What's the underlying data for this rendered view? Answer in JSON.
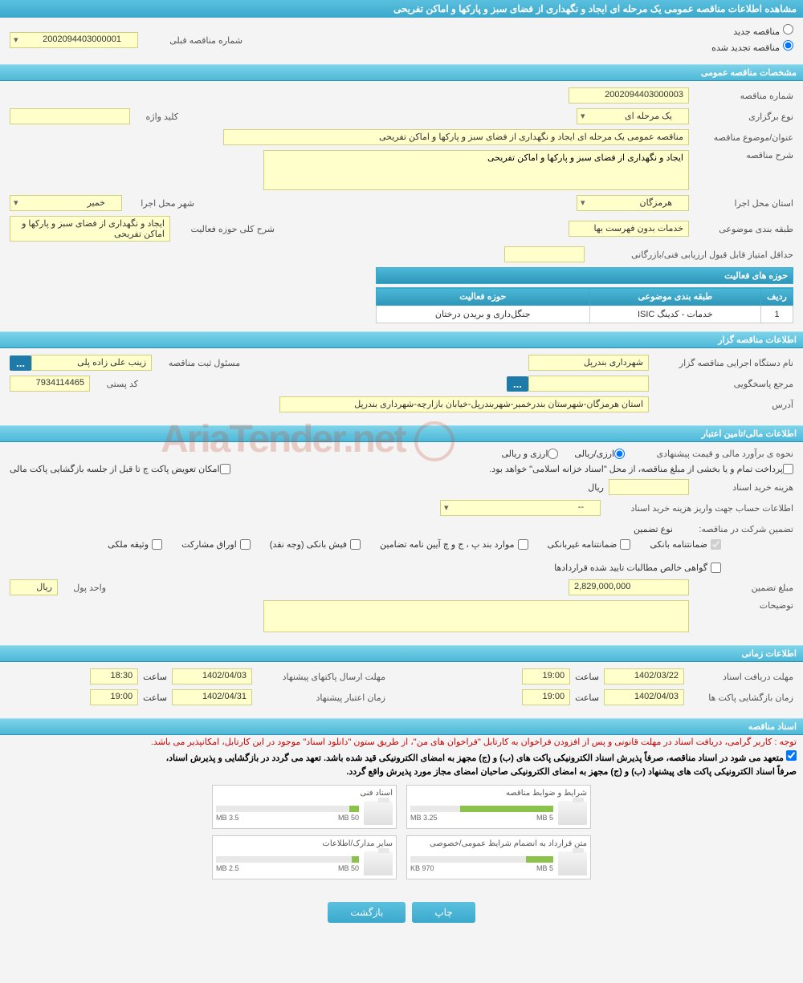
{
  "header": {
    "title": "مشاهده اطلاعات مناقصه عمومی یک مرحله ای ایجاد و نگهداری از فضای سبز و پارکها و اماکن تفریحی"
  },
  "top": {
    "new_tender": "مناقصه جدید",
    "renewed_tender": "مناقصه تجدید شده",
    "prev_number_label": "شماره مناقصه قبلی",
    "prev_number": "2002094403000001"
  },
  "sections": {
    "general": "مشخصات مناقصه عمومی",
    "organizer": "اطلاعات مناقصه گزار",
    "financial": "اطلاعات مالی/تامین اعتبار",
    "timing": "اطلاعات زمانی",
    "documents": "اسناد مناقصه"
  },
  "general": {
    "number_label": "شماره مناقصه",
    "number": "2002094403000003",
    "type_label": "نوع برگزاری",
    "type": "یک مرحله ای",
    "keyword_label": "کلید واژه",
    "keyword": "",
    "subject_label": "عنوان/موضوع مناقصه",
    "subject": "مناقصه عمومی یک مرحله ای ایجاد و نگهداری از فضای سبز و پارکها و اماکن تفریحی",
    "desc_label": "شرح مناقصه",
    "desc": "ایجاد و نگهداری از فضای سبز و پارکها و اماکن تفریحی",
    "province_label": "استان محل اجرا",
    "province": "هرمزگان",
    "city_label": "شهر محل اجرا",
    "city": "خمیر",
    "category_label": "طبقه بندی موضوعی",
    "category": "خدمات بدون فهرست بها",
    "scope_label": "شرح کلی حوزه فعالیت",
    "scope": "ایجاد و نگهداری از فضای سبز و پارکها و اماکن تفریحی",
    "min_score_label": "حداقل امتیاز قابل قبول ارزیابی فنی/بازرگانی",
    "min_score": "",
    "activity_header": "حوزه های فعالیت",
    "table": {
      "col_row": "ردیف",
      "col_category": "طبقه بندی موضوعی",
      "col_scope": "حوزه فعالیت",
      "rows": [
        {
          "n": "1",
          "cat": "خدمات - کدینگ ISIC",
          "scope": "جنگل‌داری و بریدن درختان"
        }
      ]
    }
  },
  "organizer": {
    "exec_label": "نام دستگاه اجرایی مناقصه گزار",
    "exec": "شهرداری بندرپل",
    "reg_officer_label": "مسئول ثبت مناقصه",
    "reg_officer": "زینب علی زاده پلی",
    "dots": "...",
    "ref_label": "مرجع پاسخگویی",
    "ref": "",
    "postal_label": "کد پستی",
    "postal": "7934114465",
    "address_label": "آدرس",
    "address": "استان هرمزگان-شهرستان بندرخمیر-شهربندرپل-خیابان بازارچه-شهرداری بندرپل"
  },
  "financial": {
    "estimate_label": "نحوه ی برآورد مالی و قیمت پیشنهادی",
    "currency_fx": "ارزی/ریالی",
    "currency_rial": "ارزی و ریالی",
    "payment_note": "پرداخت تمام و یا بخشی از مبلغ مناقصه، از محل \"اسناد خزانه اسلامی\" خواهد بود.",
    "replace_note": "امکان تعویض پاکت ج تا قبل از جلسه بازگشایی پاکت مالی",
    "doc_cost_label": "هزینه خرید اسناد",
    "doc_cost": "",
    "rial": "ریال",
    "account_label": "اطلاعات حساب جهت واریز هزینه خرید اسناد",
    "account": "--",
    "guarantee_label": "تضمین شرکت در مناقصه:",
    "guarantee_type_label": "نوع تضمین",
    "cb1": "ضمانتنامه بانکی",
    "cb2": "ضمانتنامه غیربانکی",
    "cb3": "موارد بند پ ، ج و چ آیین نامه تضامین",
    "cb4": "فیش بانکی (وجه نقد)",
    "cb5": "اوراق مشارکت",
    "cb6": "وثیقه ملکی",
    "cb7": "گواهی خالص مطالبات تایید شده قراردادها",
    "amount_label": "مبلغ تضمین",
    "amount": "2,829,000,000",
    "unit_label": "واحد پول",
    "unit": "ریال",
    "notes_label": "توضیحات",
    "notes": ""
  },
  "timing": {
    "doc_deadline_label": "مهلت دریافت اسناد",
    "doc_deadline_date": "1402/03/22",
    "doc_deadline_time": "19:00",
    "time_label": "ساعت",
    "envelope_deadline_label": "مهلت ارسال پاکتهای پیشنهاد",
    "envelope_deadline_date": "1402/04/03",
    "envelope_deadline_time": "18:30",
    "open_label": "زمان بازگشایی پاکت ها",
    "open_date": "1402/04/03",
    "open_time": "19:00",
    "validity_label": "زمان اعتبار پیشنهاد",
    "validity_date": "1402/04/31",
    "validity_time": "19:00"
  },
  "docs": {
    "warning": "توجه : کاربر گرامی، دریافت اسناد در مهلت قانونی و پس از افزودن فراخوان به کارتابل \"فراخوان های من\"، از طریق ستون \"دانلود اسناد\" موجود در این کارتابل، امکانپذیر می باشد.",
    "commit1": "متعهد می شود در اسناد مناقصه، صرفاً پذیرش اسناد الکترونیکی پاکت های (ب) و (ج) مجهز به امضای الکترونیکی قید شده باشد. تعهد می گردد در بازگشایی و پذیرش اسناد،",
    "commit2": "صرفاً اسناد الکترونیکی پاکت های پیشنهاد (ب) و (ج) مجهز به امضای الکترونیکی صاحبان امضای مجاز مورد پذیرش واقع گردد.",
    "files": [
      {
        "title": "شرایط و ضوابط مناقصه",
        "used": "3.25 MB",
        "cap": "5 MB",
        "pct": 65
      },
      {
        "title": "اسناد فنی",
        "used": "3.5 MB",
        "cap": "50 MB",
        "pct": 7
      },
      {
        "title": "متن قرارداد به انضمام شرایط عمومی/خصوصی",
        "used": "970 KB",
        "cap": "5 MB",
        "pct": 19
      },
      {
        "title": "سایر مدارک/اطلاعات",
        "used": "2.5 MB",
        "cap": "50 MB",
        "pct": 5
      }
    ]
  },
  "buttons": {
    "print": "چاپ",
    "back": "بازگشت"
  },
  "watermark": "AriaTender.net"
}
